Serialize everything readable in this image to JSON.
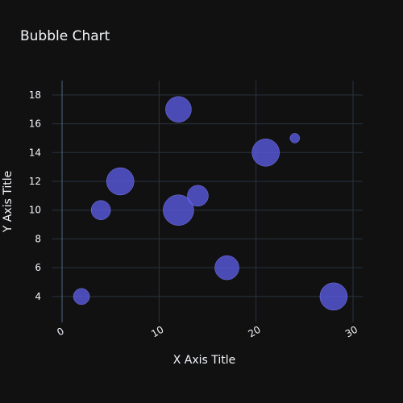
{
  "chart_data": {
    "type": "scatter",
    "subtype": "bubble",
    "title": "Bubble Chart",
    "xlabel": "X Axis Title",
    "ylabel": "Y Axis Title",
    "xlim": [
      -1,
      31
    ],
    "ylim": [
      2.2,
      19
    ],
    "xticks": [
      0,
      10,
      20,
      30
    ],
    "yticks": [
      4,
      6,
      8,
      10,
      12,
      14,
      16,
      18
    ],
    "grid": true,
    "legend": "none",
    "marker_color": "#5a5ae0",
    "marker_opacity": 0.8,
    "series": [
      {
        "points": [
          {
            "x": 2,
            "y": 4,
            "size": 10
          },
          {
            "x": 4,
            "y": 10,
            "size": 12
          },
          {
            "x": 6,
            "y": 12,
            "size": 17
          },
          {
            "x": 12,
            "y": 17,
            "size": 16
          },
          {
            "x": 12,
            "y": 10,
            "size": 19
          },
          {
            "x": 14,
            "y": 11,
            "size": 13
          },
          {
            "x": 17,
            "y": 6,
            "size": 15
          },
          {
            "x": 21,
            "y": 14,
            "size": 17
          },
          {
            "x": 24,
            "y": 15,
            "size": 6
          },
          {
            "x": 28,
            "y": 4,
            "size": 17
          }
        ]
      }
    ]
  },
  "colors": {
    "background": "#111111",
    "text": "#f2f5fa",
    "grid": "#283442",
    "zeroline": "#506784",
    "marker": "#5a5ae0"
  }
}
